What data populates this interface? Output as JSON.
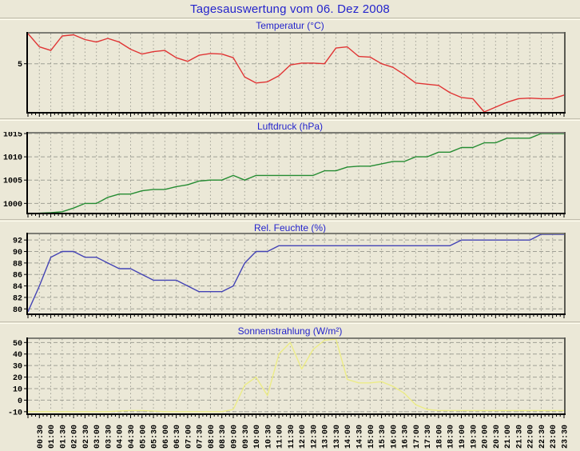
{
  "page": {
    "title": "Tagesauswertung vom 06. Dez 2008"
  },
  "colors": {
    "background": "#ebe8d7",
    "title_text": "#2424cc",
    "grid": "#a0a095",
    "axis_text": "#000000",
    "temperature_line": "#e03434",
    "pressure_line": "#258c32",
    "humidity_line": "#4343b5",
    "solar_line": "#ecec86"
  },
  "time_axis": {
    "start": "00:00",
    "step_minutes": 30,
    "labels": [
      "00:30",
      "01:00",
      "01:30",
      "02:00",
      "02:30",
      "03:00",
      "03:30",
      "04:00",
      "04:30",
      "05:00",
      "05:30",
      "06:00",
      "06:30",
      "07:00",
      "07:30",
      "08:00",
      "08:30",
      "09:00",
      "09:30",
      "10:00",
      "10:30",
      "11:00",
      "11:30",
      "12:00",
      "12:30",
      "13:00",
      "13:30",
      "14:00",
      "14:30",
      "15:00",
      "15:30",
      "16:00",
      "16:30",
      "17:00",
      "17:30",
      "18:00",
      "18:30",
      "19:00",
      "19:30",
      "20:00",
      "20:30",
      "21:00",
      "21:30",
      "22:00",
      "22:30",
      "23:00",
      "23:30"
    ]
  },
  "chart_data": [
    {
      "type": "line",
      "title": "Temperatur (°C)",
      "color_key": "temperature_line",
      "x_start": "00:00",
      "x_step_minutes": 30,
      "ylim": [
        1,
        7.5
      ],
      "yticks": [
        5
      ],
      "grid": true,
      "values": [
        7.5,
        6.4,
        6.1,
        7.3,
        7.4,
        7.0,
        6.8,
        7.1,
        6.8,
        6.2,
        5.8,
        6.0,
        6.1,
        5.5,
        5.2,
        5.7,
        5.85,
        5.8,
        5.5,
        3.9,
        3.4,
        3.5,
        4.0,
        4.9,
        5.05,
        5.05,
        5.0,
        6.3,
        6.4,
        5.6,
        5.55,
        5.0,
        4.7,
        4.1,
        3.4,
        3.3,
        3.2,
        2.6,
        2.2,
        2.1,
        1.0,
        1.4,
        1.8,
        2.1,
        2.15,
        2.1,
        2.1,
        2.4
      ]
    },
    {
      "type": "line",
      "title": "Luftdruck (hPa)",
      "color_key": "pressure_line",
      "x_start": "00:00",
      "x_step_minutes": 30,
      "ylim": [
        998,
        1015
      ],
      "yticks": [
        1000,
        1005,
        1010,
        1015
      ],
      "grid": true,
      "values": [
        997.8,
        997.9,
        998.0,
        998.2,
        999.0,
        1000,
        1000,
        1001.3,
        1002,
        1002,
        1002.7,
        1003,
        1003,
        1003.6,
        1004,
        1004.8,
        1005,
        1005,
        1006,
        1005,
        1006,
        1006,
        1006,
        1006,
        1006,
        1006,
        1007,
        1007,
        1007.8,
        1008,
        1008,
        1008.5,
        1009,
        1009,
        1010,
        1010,
        1011,
        1011,
        1012,
        1012,
        1013,
        1013,
        1014,
        1014,
        1014,
        1015,
        1015,
        1015
      ]
    },
    {
      "type": "line",
      "title": "Rel. Feuchte (%)",
      "color_key": "humidity_line",
      "x_start": "00:00",
      "x_step_minutes": 30,
      "ylim": [
        79.2,
        93
      ],
      "yticks": [
        80,
        82,
        84,
        86,
        88,
        90,
        92
      ],
      "grid": true,
      "values": [
        79.5,
        84,
        89,
        90,
        90,
        89,
        89,
        88,
        87,
        87,
        86,
        85,
        85,
        85,
        84,
        83,
        83,
        83,
        84,
        88,
        90,
        90,
        91,
        91,
        91,
        91,
        91,
        91,
        91,
        91,
        91,
        91,
        91,
        91,
        91,
        91,
        91,
        91,
        92,
        92,
        92,
        92,
        92,
        92,
        92,
        93,
        93,
        93
      ]
    },
    {
      "type": "line",
      "title": "Sonnenstrahlung (W/m²)",
      "color_key": "solar_line",
      "x_start": "00:00",
      "x_step_minutes": 30,
      "ylim": [
        -11.5,
        53
      ],
      "yticks": [
        -10,
        0,
        10,
        20,
        30,
        40,
        50
      ],
      "grid": true,
      "values": [
        -10,
        -10,
        -10,
        -10,
        -10,
        -10,
        -10,
        -10,
        -9.5,
        -9,
        -9,
        -9.5,
        -10,
        -10,
        -10,
        -10,
        -10,
        -10,
        -8,
        13,
        20,
        4,
        40,
        50,
        27,
        44,
        52,
        53,
        18,
        15,
        15,
        16,
        12,
        6,
        -4,
        -8,
        -9,
        -9,
        -9,
        -9,
        -9,
        -9,
        -9,
        -9,
        -9,
        -9,
        -9,
        -9
      ]
    }
  ]
}
